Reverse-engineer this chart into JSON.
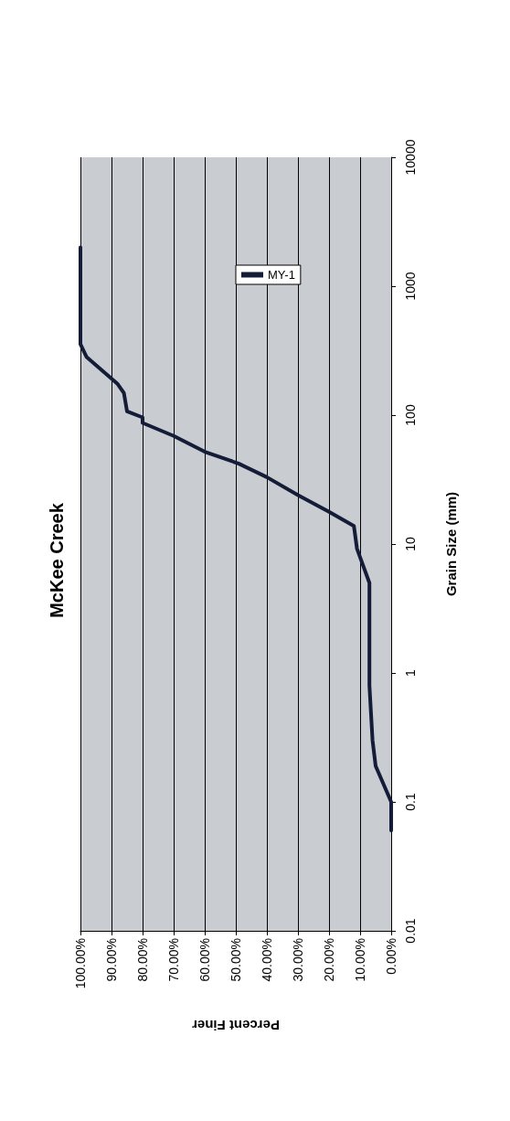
{
  "chart_data": {
    "type": "line",
    "title": "McKee Creek",
    "xlabel": "Percent Finer",
    "ylabel": "Grain Size (mm)",
    "log": "y",
    "ylim": [
      0.01,
      10000
    ],
    "yticks": [
      0.01,
      0.1,
      1,
      10,
      100,
      1000,
      10000
    ],
    "xlim": [
      100,
      0
    ],
    "xticks": [
      {
        "value": 100,
        "label": "100.00%"
      },
      {
        "value": 90,
        "label": "90.00%"
      },
      {
        "value": 80,
        "label": "80.00%"
      },
      {
        "value": 70,
        "label": "70.00%"
      },
      {
        "value": 60,
        "label": "60.00%"
      },
      {
        "value": 50,
        "label": "50.00%"
      },
      {
        "value": 40,
        "label": "40.00%"
      },
      {
        "value": 30,
        "label": "30.00%"
      },
      {
        "value": 20,
        "label": "20.00%"
      },
      {
        "value": 10,
        "label": "10.00%"
      },
      {
        "value": 0,
        "label": "0.00%"
      }
    ],
    "grid": "x",
    "legend": "top right",
    "marker": "none",
    "line_style": "solid",
    "series": [
      {
        "name": "MY-1",
        "color": "#141c38",
        "x": [
          0,
          0,
          5,
          6,
          7,
          7,
          11,
          12,
          20,
          30,
          40,
          49,
          60,
          70,
          80,
          80,
          85,
          86,
          88,
          98,
          100,
          100
        ],
        "values": [
          0.06,
          0.1,
          0.19,
          0.3,
          0.8,
          5,
          9.2,
          13.8,
          17.8,
          24,
          33,
          42,
          52,
          69,
          87,
          96,
          107,
          148,
          174,
          282,
          355,
          2000
        ]
      }
    ]
  }
}
